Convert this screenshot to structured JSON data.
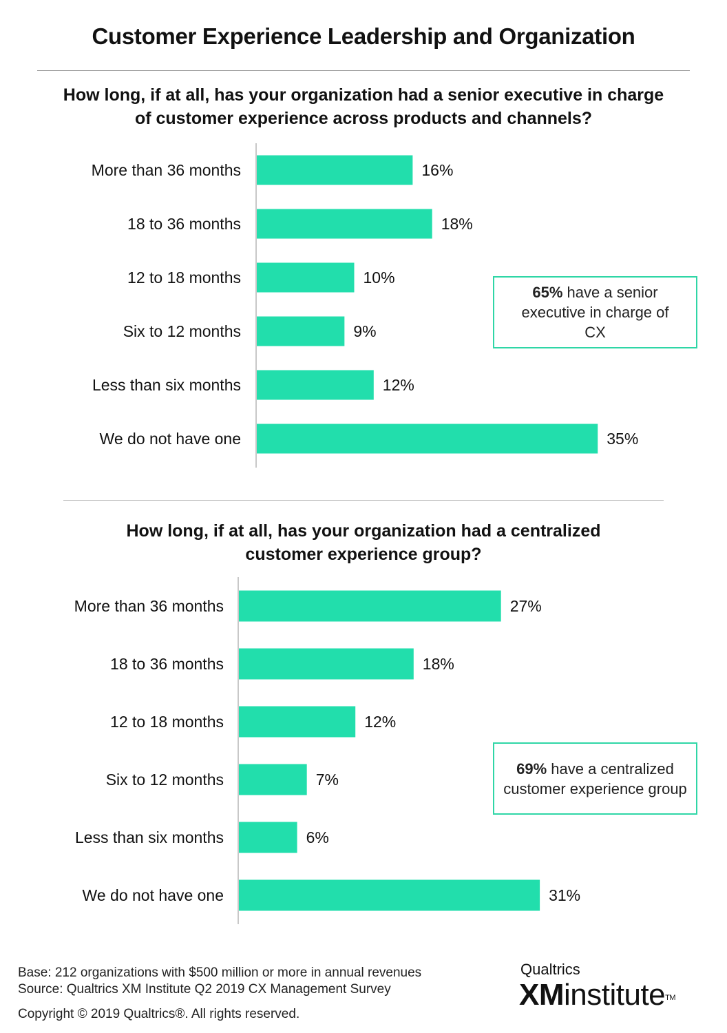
{
  "title": "Customer Experience Leadership and Organization",
  "colors": {
    "bar": "#22deac",
    "callout_border": "#2fd6a6",
    "divider": "#9a9a9a",
    "axis": "#c8c8c8"
  },
  "chart_data": [
    {
      "type": "bar",
      "orientation": "horizontal",
      "title": "How long, if at all, has your organization had a senior executive in charge of customer experience across products and channels?",
      "categories": [
        "More than 36 months",
        "18 to 36 months",
        "12 to 18 months",
        "Six to 12 months",
        "Less than six months",
        "We do not have one"
      ],
      "values": [
        16,
        18,
        10,
        9,
        12,
        35
      ],
      "value_labels": [
        "16%",
        "18%",
        "10%",
        "9%",
        "12%",
        "35%"
      ],
      "unit": "%",
      "xlim": [
        0,
        35
      ],
      "grid": false,
      "annotation": {
        "bold": "65%",
        "text": " have a senior executive in charge of CX"
      }
    },
    {
      "type": "bar",
      "orientation": "horizontal",
      "title": "How long, if at all, has your organization had a centralized customer experience group?",
      "categories": [
        "More than 36 months",
        "18 to 36 months",
        "12 to 18 months",
        "Six to 12 months",
        "Less than six months",
        "We do not have one"
      ],
      "values": [
        27,
        18,
        12,
        7,
        6,
        31
      ],
      "value_labels": [
        "27%",
        "18%",
        "12%",
        "7%",
        "6%",
        "31%"
      ],
      "unit": "%",
      "xlim": [
        0,
        35
      ],
      "grid": false,
      "annotation": {
        "bold": "69%",
        "text": " have a centralized customer experience group"
      }
    }
  ],
  "footer": {
    "base": "Base: 212 organizations with $500 million or more in annual revenues",
    "source": "Source: Qualtrics XM Institute Q2 2019 CX Management Survey",
    "copyright": "Copyright © 2019 Qualtrics®.  All rights reserved."
  },
  "logo": {
    "brand": "Qualtrics",
    "xm": "XM",
    "institute": "institute",
    "tm": "TM"
  }
}
